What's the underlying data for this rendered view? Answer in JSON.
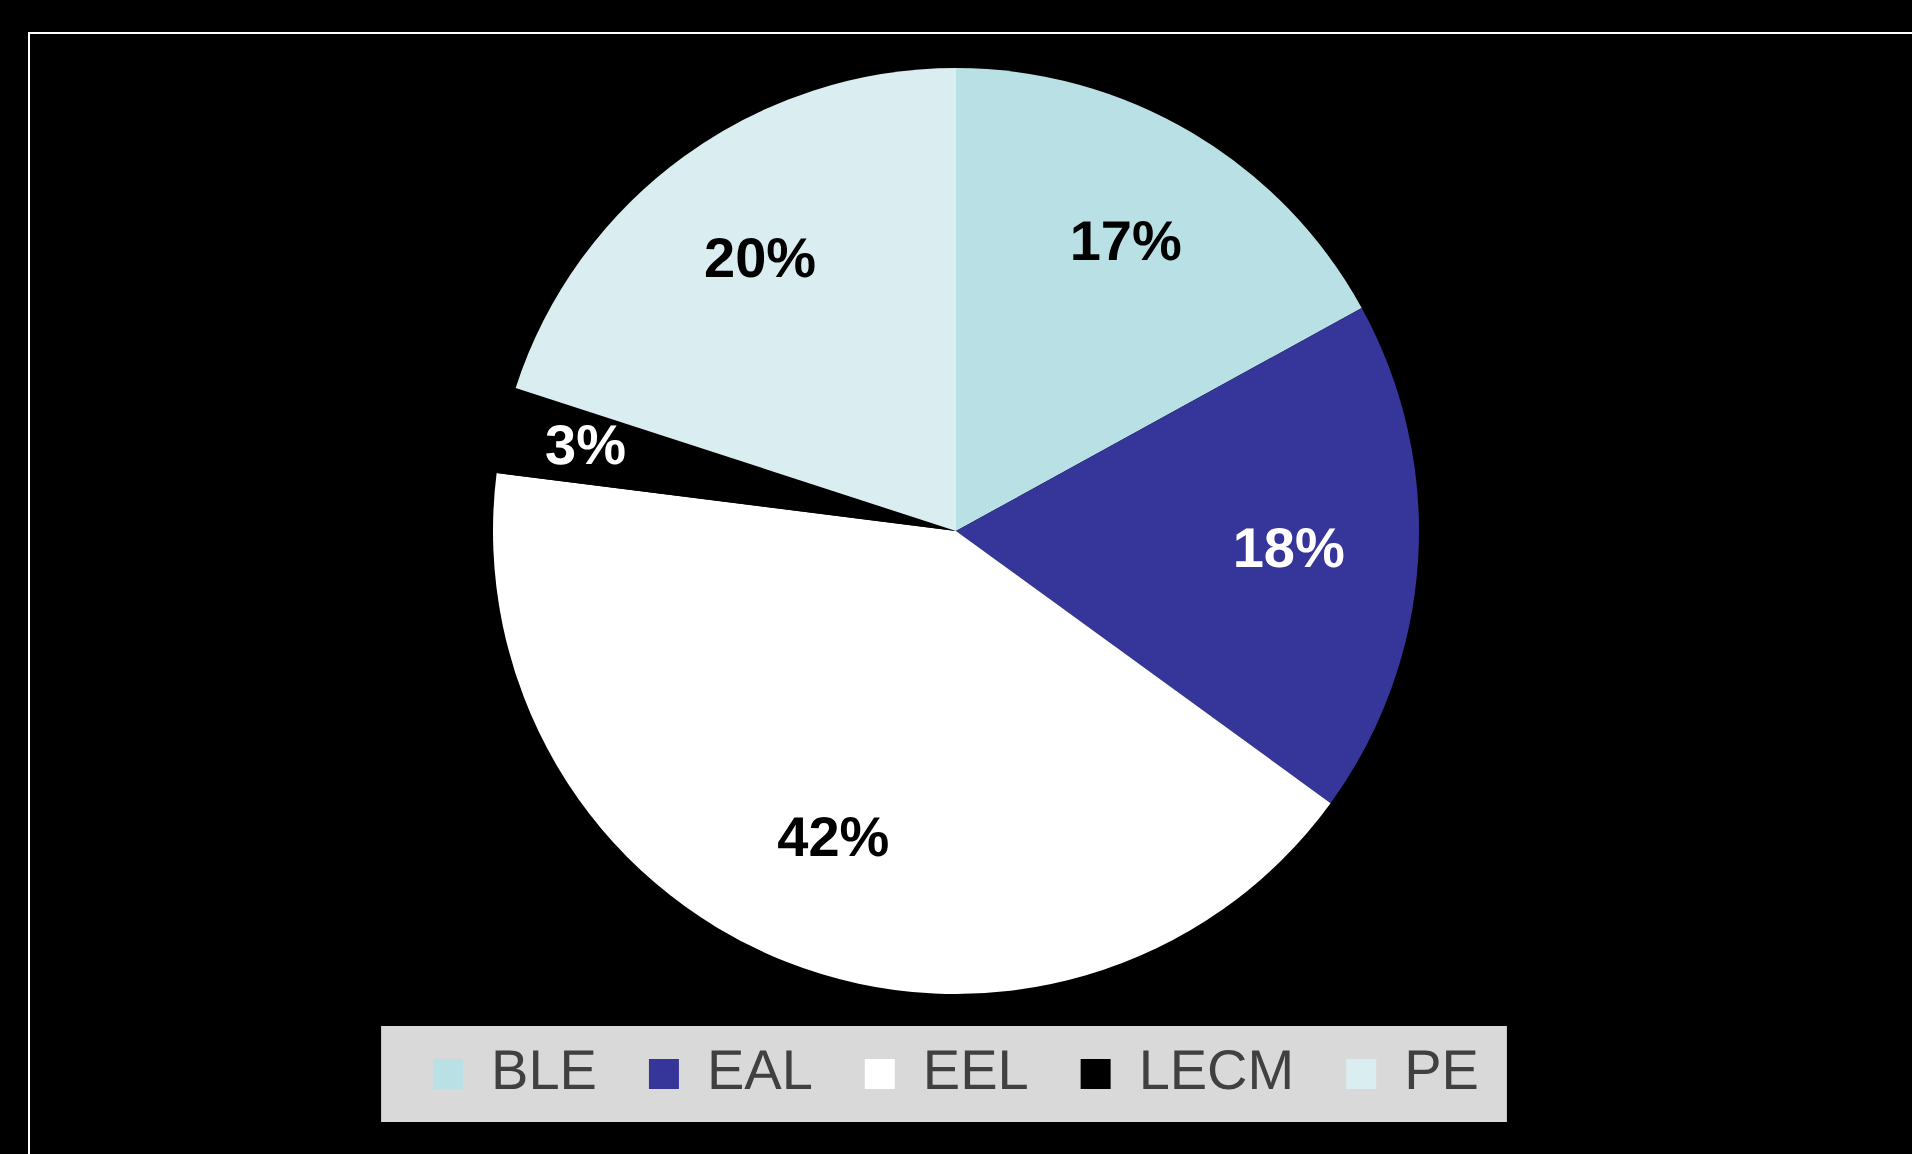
{
  "chart_data": {
    "type": "pie",
    "categories": [
      "BLE",
      "EAL",
      "EEL",
      "LECM",
      "PE"
    ],
    "values": [
      17,
      18,
      42,
      3,
      20
    ],
    "value_labels": [
      "17%",
      "18%",
      "42%",
      "3%",
      "20%"
    ],
    "colors": [
      "#b9e0e4",
      "#36369a",
      "#ffffff",
      "#000000",
      "#daedf0"
    ],
    "legend": "bottom"
  }
}
